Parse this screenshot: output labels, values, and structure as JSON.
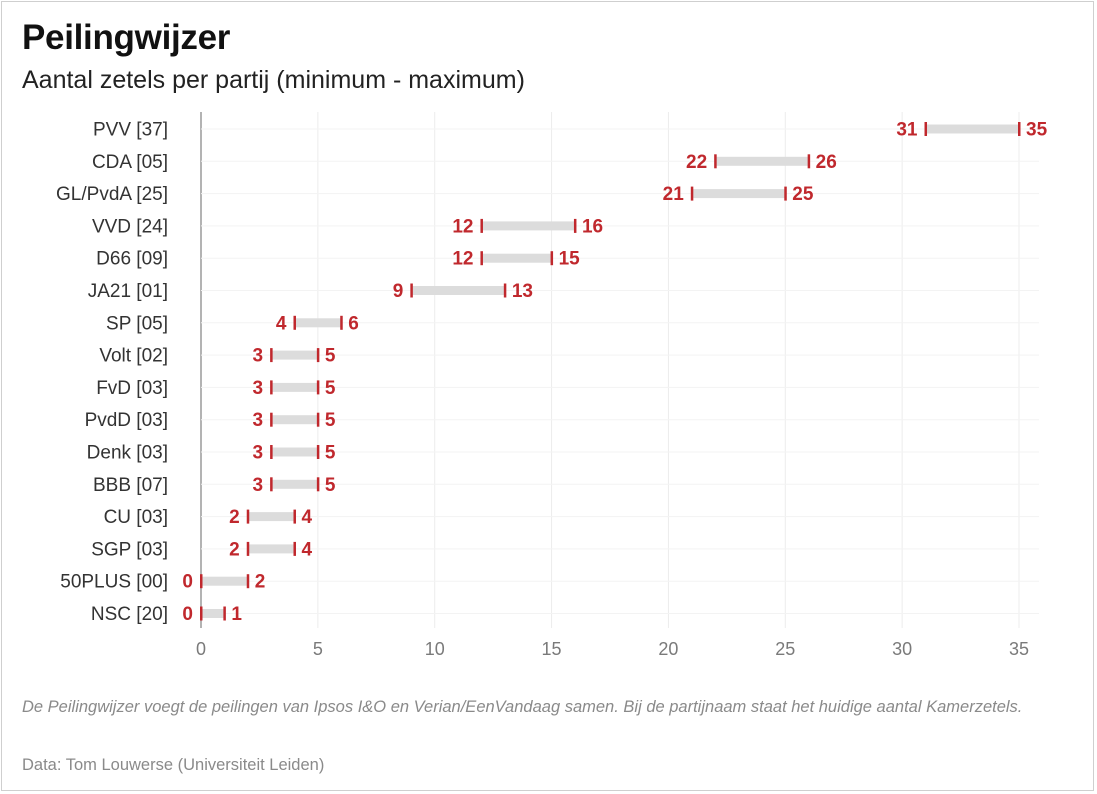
{
  "header": {
    "title": "Peilingwijzer",
    "subtitle": "Aantal zetels per partij (minimum - maximum)"
  },
  "footer": {
    "note": "De Peilingwijzer voegt de peilingen van Ipsos I&O en Verian/EenVandaag samen. Bij de partijnaam staat het huidige aantal Kamerzetels.",
    "source": "Data: Tom Louwerse (Universiteit Leiden)"
  },
  "colors": {
    "accent": "#c0282d",
    "range": "#dcdcdc",
    "grid": "#ececec",
    "axis": "#9a9a9a",
    "label": "#333333"
  },
  "chart_data": {
    "type": "range-bar",
    "title": "Peilingwijzer",
    "subtitle": "Aantal zetels per partij (minimum - maximum)",
    "xlabel": "",
    "ylabel": "",
    "xlim": [
      0,
      35
    ],
    "xticks": [
      0,
      5,
      10,
      15,
      20,
      25,
      30,
      35
    ],
    "grid": true,
    "categories": [
      "PVV [37]",
      "CDA [05]",
      "GL/PvdA [25]",
      "VVD [24]",
      "D66 [09]",
      "JA21 [01]",
      "SP [05]",
      "Volt [02]",
      "FvD [03]",
      "PvdD [03]",
      "Denk [03]",
      "BBB [07]",
      "CU [03]",
      "SGP [03]",
      "50PLUS [00]",
      "NSC [20]"
    ],
    "min": [
      31,
      22,
      21,
      12,
      12,
      9,
      4,
      3,
      3,
      3,
      3,
      3,
      2,
      2,
      0,
      0
    ],
    "max": [
      35,
      26,
      25,
      16,
      15,
      13,
      6,
      5,
      5,
      5,
      5,
      5,
      4,
      4,
      2,
      1
    ]
  }
}
